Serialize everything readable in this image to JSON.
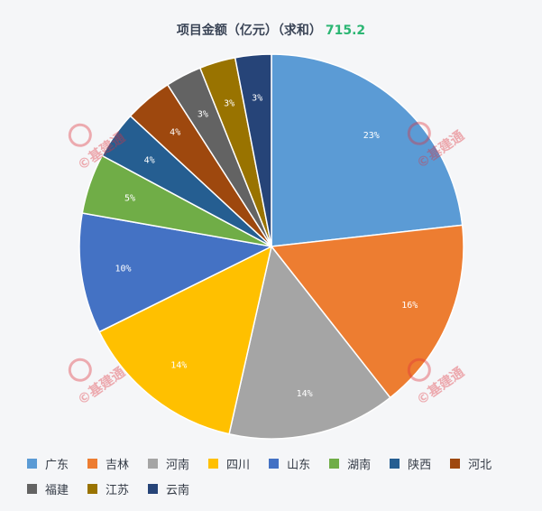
{
  "chart_title": "项目金额（亿元）（求和）",
  "total": "715.2",
  "watermark_text": "©基建通",
  "chart_data": {
    "type": "pie",
    "categories": [
      "广东",
      "吉林",
      "河南",
      "四川",
      "山东",
      "湖南",
      "陕西",
      "河北",
      "福建",
      "江苏",
      "云南"
    ],
    "values": [
      23,
      16,
      14,
      14,
      10,
      5,
      4,
      4,
      3,
      3,
      3
    ],
    "labels": [
      "23%",
      "16%",
      "14%",
      "14%",
      "10%",
      "5%",
      "4%",
      "4%",
      "3%",
      "3%",
      "3%"
    ],
    "colors": [
      "#5b9bd5",
      "#ed7d31",
      "#a5a5a5",
      "#ffc000",
      "#4472c4",
      "#70ad47",
      "#255e91",
      "#9e480e",
      "#636363",
      "#997300",
      "#264478"
    ],
    "legend_position": "bottom"
  }
}
